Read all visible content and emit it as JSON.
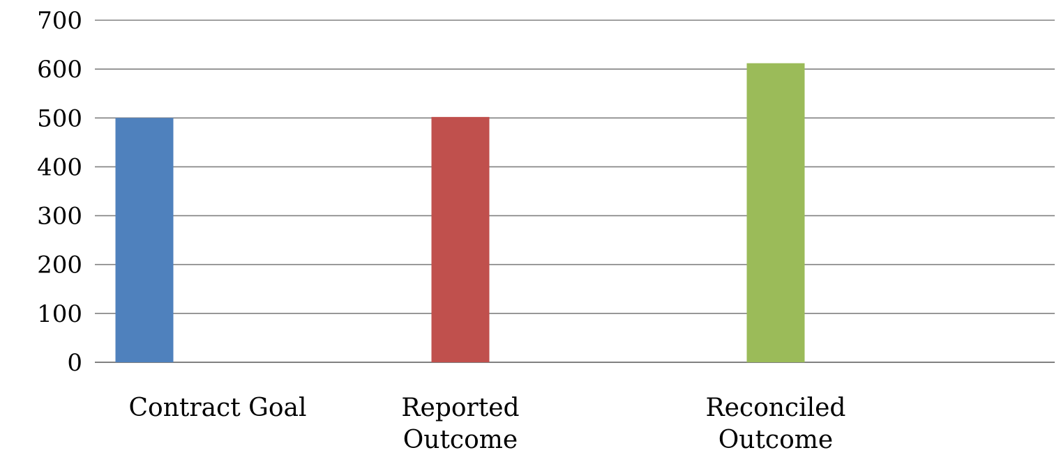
{
  "chart_data": {
    "type": "bar",
    "categories": [
      "Contract Goal",
      "Reported Outcome",
      "Reconciled Outcome"
    ],
    "category_lines": [
      [
        "Contract Goal"
      ],
      [
        "Reported",
        "Outcome"
      ],
      [
        "Reconciled",
        "Outcome"
      ]
    ],
    "values": [
      500,
      502,
      612
    ],
    "colors": [
      "#4F81BD",
      "#C0504D",
      "#9BBB59"
    ],
    "ylim": [
      0,
      700
    ],
    "yticks": [
      0,
      100,
      200,
      300,
      400,
      500,
      600,
      700
    ],
    "grid": true,
    "gridline_color": "#808080",
    "title": "",
    "xlabel": "",
    "ylabel": ""
  }
}
